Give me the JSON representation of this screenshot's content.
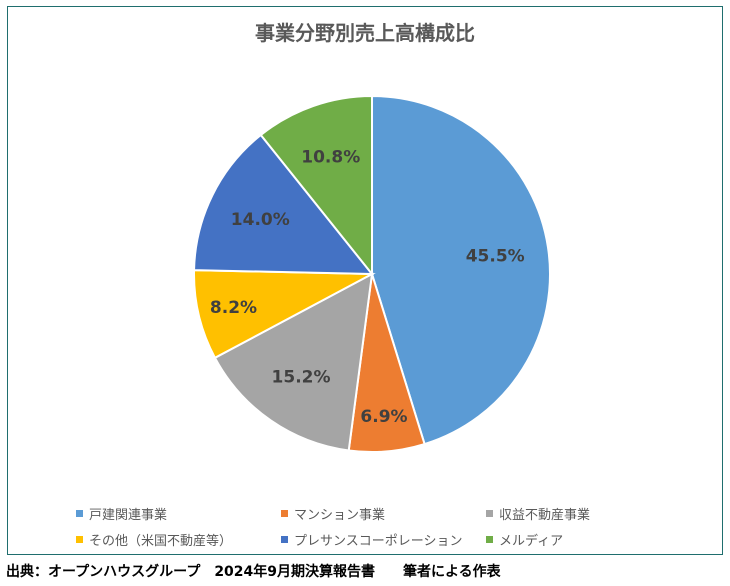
{
  "chart_data": {
    "type": "pie",
    "title": "事業分野別売上高構成比",
    "categories": [
      "戸建関連事業",
      "マンション事業",
      "収益不動産事業",
      "その他（米国不動産等）",
      "プレサンスコーポレーション",
      "メルディア"
    ],
    "values": [
      45.5,
      6.9,
      15.2,
      8.2,
      14.0,
      10.8
    ],
    "data_labels": [
      "45.5%",
      "6.9%",
      "15.2%",
      "8.2%",
      "14.0%",
      "10.8%"
    ],
    "colors": [
      "#5b9bd5",
      "#ed7d31",
      "#a5a5a5",
      "#ffc000",
      "#4472c4",
      "#70ad47"
    ],
    "legend_position": "bottom"
  },
  "source_note": "出典：オープンハウスグループ　2024年9月期決算報告書　　筆者による作表"
}
